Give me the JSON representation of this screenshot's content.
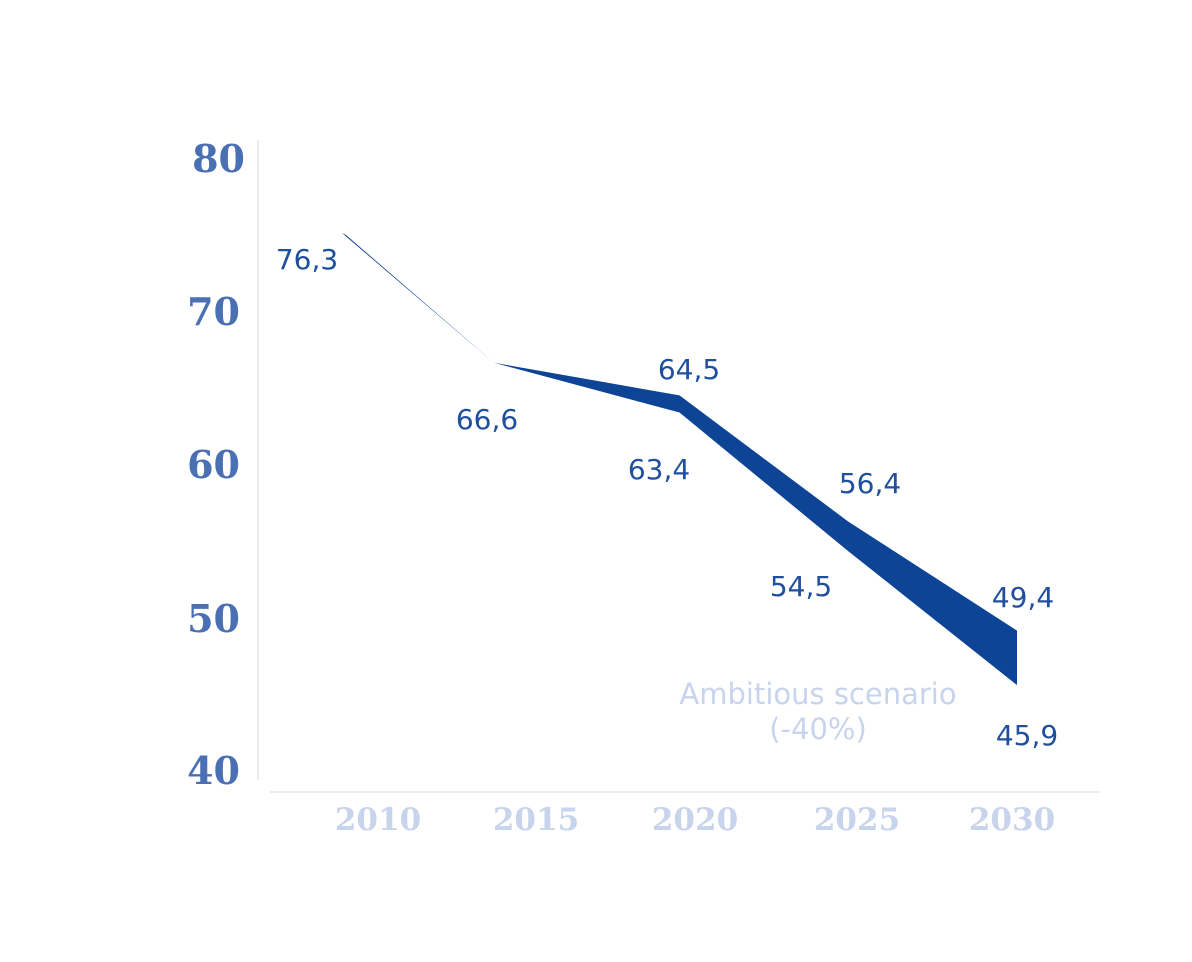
{
  "chart_data": {
    "type": "area",
    "x": [
      2010,
      2015,
      2020,
      2025,
      2030
    ],
    "xticks": [
      "2010",
      "2015",
      "2020",
      "2025",
      "2030"
    ],
    "yticks": [
      "80",
      "70",
      "60",
      "50",
      "40"
    ],
    "ylim": [
      40,
      80
    ],
    "series": [
      {
        "values": [
          76.3,
          66.6,
          64.5,
          56.4,
          49.4
        ],
        "labels": [
          "76,3",
          "",
          "64,5",
          "56,4",
          "49,4"
        ]
      },
      {
        "values": [
          76.3,
          66.6,
          63.4,
          54.5,
          45.9
        ],
        "labels": [
          "",
          "66,6",
          "63,4",
          "54,5",
          "45,9"
        ]
      }
    ],
    "annotation": {
      "line1": "Ambitious scenario",
      "line2": "(-40%)"
    },
    "colors": {
      "band": "#0d4496",
      "ytick": "#4a6fb3",
      "xtick": "#c7d4ec",
      "label": "#1f4f9e",
      "axis": "#e3e6ec"
    },
    "grid": false
  }
}
